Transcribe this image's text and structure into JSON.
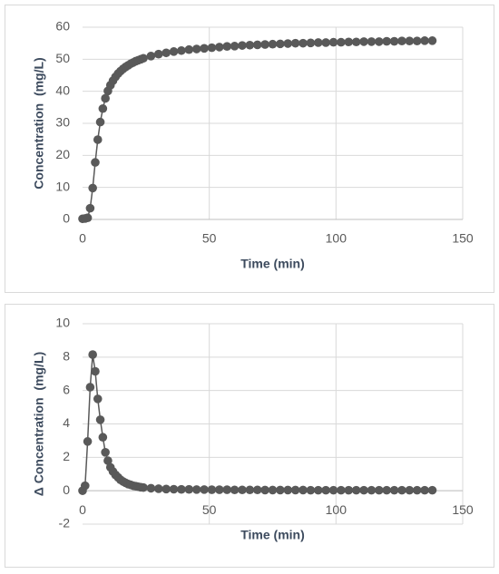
{
  "chart_data": [
    {
      "type": "line",
      "xlabel": "Time (min)",
      "ylabel": "Concentration  (mg/L)",
      "color": "#595959",
      "grid": true,
      "xlim": [
        0,
        150
      ],
      "xticks": [
        0,
        50,
        100,
        150
      ],
      "ylim": [
        0,
        60
      ],
      "yticks": [
        0,
        10,
        20,
        30,
        40,
        50,
        60
      ],
      "x": [
        0,
        1,
        2,
        3,
        4,
        5,
        6,
        7,
        8,
        9,
        10,
        11,
        12,
        13,
        14,
        15,
        16,
        17,
        18,
        19,
        20,
        21,
        22,
        23,
        24,
        27,
        30,
        33,
        36,
        39,
        42,
        45,
        48,
        51,
        54,
        57,
        60,
        63,
        66,
        69,
        72,
        75,
        78,
        81,
        84,
        87,
        90,
        93,
        96,
        99,
        102,
        105,
        108,
        111,
        114,
        117,
        120,
        123,
        126,
        129,
        132,
        135,
        138
      ],
      "values": [
        0.2,
        0.3,
        0.5,
        3.5,
        9.8,
        17.8,
        24.9,
        30.4,
        34.6,
        37.8,
        40.1,
        41.9,
        43.3,
        44.5,
        45.5,
        46.3,
        47.0,
        47.6,
        48.1,
        48.6,
        49.0,
        49.4,
        49.7,
        50.0,
        50.3,
        51.0,
        51.6,
        52.0,
        52.4,
        52.7,
        53.0,
        53.2,
        53.4,
        53.6,
        53.8,
        54.0,
        54.1,
        54.3,
        54.4,
        54.5,
        54.6,
        54.7,
        54.8,
        54.9,
        55.0,
        55.0,
        55.1,
        55.2,
        55.2,
        55.3,
        55.3,
        55.4,
        55.4,
        55.5,
        55.5,
        55.5,
        55.6,
        55.6,
        55.7,
        55.7,
        55.7,
        55.8,
        55.8
      ]
    },
    {
      "type": "line",
      "xlabel": "Time (min)",
      "ylabel": "Δ Concentration  (mg/L)",
      "color": "#595959",
      "grid": true,
      "xlim": [
        0,
        150
      ],
      "xticks": [
        0,
        50,
        100,
        150
      ],
      "ylim": [
        -2,
        10
      ],
      "yticks": [
        -2,
        0,
        2,
        4,
        6,
        8,
        10
      ],
      "x": [
        0,
        1,
        2,
        3,
        4,
        5,
        6,
        7,
        8,
        9,
        10,
        11,
        12,
        13,
        14,
        15,
        16,
        17,
        18,
        19,
        20,
        21,
        22,
        23,
        24,
        27,
        30,
        33,
        36,
        39,
        42,
        45,
        48,
        51,
        54,
        57,
        60,
        63,
        66,
        69,
        72,
        75,
        78,
        81,
        84,
        87,
        90,
        93,
        96,
        99,
        102,
        105,
        108,
        111,
        114,
        117,
        120,
        123,
        126,
        129,
        132,
        135,
        138
      ],
      "values": [
        0,
        0.3,
        2.95,
        6.2,
        8.15,
        7.15,
        5.5,
        4.25,
        3.2,
        2.3,
        1.8,
        1.4,
        1.15,
        0.95,
        0.8,
        0.65,
        0.55,
        0.47,
        0.4,
        0.35,
        0.3,
        0.27,
        0.24,
        0.21,
        0.19,
        0.15,
        0.12,
        0.1,
        0.09,
        0.08,
        0.08,
        0.07,
        0.07,
        0.06,
        0.06,
        0.06,
        0.05,
        0.05,
        0.05,
        0.05,
        0.04,
        0.04,
        0.04,
        0.04,
        0.04,
        0.04,
        0.03,
        0.03,
        0.03,
        0.03,
        0.03,
        0.03,
        0.03,
        0.03,
        0.03,
        0.03,
        0.03,
        0.03,
        0.03,
        0.03,
        0.03,
        0.03,
        0.03
      ]
    }
  ]
}
